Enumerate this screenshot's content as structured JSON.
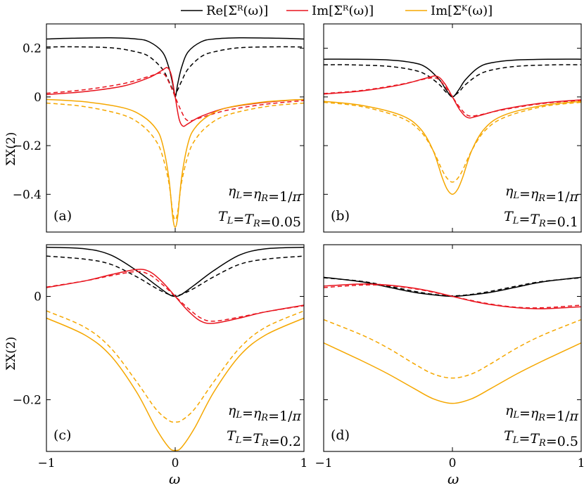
{
  "legend": [
    {
      "name": "Re[Σᴿ(ω)]",
      "color": "#000000"
    },
    {
      "name": "Im[Σᴿ(ω)]",
      "color": "#e8141e"
    },
    {
      "name": "Im[Σᴷ(ω)]",
      "color": "#f5a700"
    }
  ],
  "figure": {
    "xlabel": "ω",
    "ylabel_top": "ΣX(2)",
    "ylabel_bottom": "ΣX(2)"
  },
  "chart_data": [
    {
      "type": "line",
      "panel": "(a)",
      "annotation_eta": "ηL=ηR=1/π",
      "annotation_T": "TL=TR=0.05",
      "xlim": [
        -1,
        1
      ],
      "ylim": [
        -0.555,
        0.3
      ],
      "yticks": [
        0.2,
        0,
        -0.2,
        -0.4
      ],
      "yticklabels": [
        "0.2",
        "0",
        "−0.2",
        "−0.4"
      ],
      "xticks": [
        -1,
        0,
        1
      ],
      "xticklabels": [
        "",
        "",
        ""
      ],
      "series": [
        {
          "key": "re_solid",
          "color": "#000000",
          "dashed": false,
          "x": [
            -1,
            -0.8,
            -0.5,
            -0.3,
            -0.2,
            -0.1,
            -0.05,
            -0.02,
            0,
            0.02,
            0.05,
            0.1,
            0.2,
            0.3,
            0.5,
            0.8,
            1
          ],
          "y": [
            0.238,
            0.241,
            0.243,
            0.238,
            0.226,
            0.185,
            0.122,
            0.055,
            0.0,
            0.055,
            0.122,
            0.185,
            0.226,
            0.238,
            0.243,
            0.241,
            0.238
          ]
        },
        {
          "key": "re_dashed",
          "color": "#000000",
          "dashed": true,
          "x": [
            -1,
            -0.8,
            -0.5,
            -0.3,
            -0.2,
            -0.1,
            -0.05,
            -0.02,
            0,
            0.02,
            0.05,
            0.1,
            0.2,
            0.3,
            0.5,
            0.8,
            1
          ],
          "y": [
            0.205,
            0.206,
            0.202,
            0.185,
            0.165,
            0.115,
            0.065,
            0.03,
            0.01,
            0.03,
            0.065,
            0.115,
            0.165,
            0.185,
            0.202,
            0.206,
            0.205
          ]
        },
        {
          "key": "imr_solid",
          "color": "#e8141e",
          "dashed": false,
          "x": [
            -1,
            -0.7,
            -0.4,
            -0.2,
            -0.1,
            -0.06,
            -0.03,
            0,
            0.03,
            0.06,
            0.1,
            0.2,
            0.4,
            0.7,
            1
          ],
          "y": [
            0.01,
            0.022,
            0.045,
            0.08,
            0.11,
            0.12,
            0.09,
            0.0,
            -0.09,
            -0.12,
            -0.11,
            -0.08,
            -0.045,
            -0.022,
            -0.01
          ]
        },
        {
          "key": "imr_dashed",
          "color": "#e8141e",
          "dashed": true,
          "x": [
            -1,
            -0.7,
            -0.4,
            -0.2,
            -0.12,
            -0.08,
            -0.04,
            0,
            0.04,
            0.08,
            0.12,
            0.2,
            0.4,
            0.7,
            1
          ],
          "y": [
            0.015,
            0.03,
            0.055,
            0.085,
            0.098,
            0.09,
            0.05,
            0.0,
            -0.05,
            -0.09,
            -0.098,
            -0.085,
            -0.055,
            -0.03,
            -0.015
          ]
        },
        {
          "key": "imk_solid",
          "color": "#f5a700",
          "dashed": false,
          "x": [
            -1,
            -0.7,
            -0.4,
            -0.25,
            -0.15,
            -0.1,
            -0.05,
            -0.02,
            0,
            0.02,
            0.05,
            0.1,
            0.15,
            0.25,
            0.4,
            0.7,
            1
          ],
          "y": [
            -0.01,
            -0.02,
            -0.045,
            -0.08,
            -0.13,
            -0.19,
            -0.33,
            -0.49,
            -0.535,
            -0.49,
            -0.33,
            -0.19,
            -0.13,
            -0.08,
            -0.045,
            -0.02,
            -0.01
          ]
        },
        {
          "key": "imk_dashed",
          "color": "#f5a700",
          "dashed": true,
          "x": [
            -1,
            -0.7,
            -0.4,
            -0.25,
            -0.15,
            -0.1,
            -0.05,
            -0.02,
            0,
            0.02,
            0.05,
            0.1,
            0.15,
            0.25,
            0.4,
            0.7,
            1
          ],
          "y": [
            -0.025,
            -0.04,
            -0.075,
            -0.12,
            -0.18,
            -0.24,
            -0.35,
            -0.47,
            -0.505,
            -0.47,
            -0.35,
            -0.24,
            -0.18,
            -0.12,
            -0.075,
            -0.04,
            -0.025
          ]
        }
      ]
    },
    {
      "type": "line",
      "panel": "(b)",
      "annotation_eta": "ηL=ηR=1/π",
      "annotation_T": "TL=TR=0.1",
      "xlim": [
        -1,
        1
      ],
      "ylim": [
        -0.555,
        0.3
      ],
      "yticks": [
        0.2,
        0,
        -0.2,
        -0.4
      ],
      "yticklabels": [
        "",
        "",
        "",
        ""
      ],
      "xticks": [
        -1,
        0,
        1
      ],
      "xticklabels": [
        "",
        "",
        ""
      ],
      "series": [
        {
          "key": "re_solid",
          "color": "#000000",
          "dashed": false,
          "x": [
            -1,
            -0.8,
            -0.5,
            -0.3,
            -0.2,
            -0.1,
            -0.05,
            0,
            0.05,
            0.1,
            0.2,
            0.3,
            0.5,
            0.8,
            1
          ],
          "y": [
            0.155,
            0.155,
            0.152,
            0.14,
            0.12,
            0.07,
            0.03,
            0.0,
            0.03,
            0.07,
            0.12,
            0.14,
            0.152,
            0.155,
            0.155
          ]
        },
        {
          "key": "re_dashed",
          "color": "#000000",
          "dashed": true,
          "x": [
            -1,
            -0.8,
            -0.5,
            -0.3,
            -0.2,
            -0.1,
            -0.05,
            0,
            0.05,
            0.1,
            0.2,
            0.3,
            0.5,
            0.8,
            1
          ],
          "y": [
            0.132,
            0.132,
            0.126,
            0.11,
            0.09,
            0.05,
            0.02,
            0.005,
            0.02,
            0.05,
            0.09,
            0.11,
            0.126,
            0.132,
            0.132
          ]
        },
        {
          "key": "imr_solid",
          "color": "#e8141e",
          "dashed": false,
          "x": [
            -1,
            -0.7,
            -0.4,
            -0.2,
            -0.12,
            -0.06,
            0,
            0.06,
            0.12,
            0.2,
            0.4,
            0.7,
            1
          ],
          "y": [
            0.012,
            0.025,
            0.05,
            0.078,
            0.085,
            0.055,
            0.0,
            -0.055,
            -0.085,
            -0.078,
            -0.05,
            -0.025,
            -0.012
          ]
        },
        {
          "key": "imr_dashed",
          "color": "#e8141e",
          "dashed": true,
          "x": [
            -1,
            -0.7,
            -0.4,
            -0.2,
            -0.12,
            -0.06,
            0,
            0.06,
            0.12,
            0.2,
            0.4,
            0.7,
            1
          ],
          "y": [
            0.014,
            0.027,
            0.052,
            0.075,
            0.076,
            0.045,
            0.0,
            -0.045,
            -0.076,
            -0.075,
            -0.052,
            -0.027,
            -0.014
          ]
        },
        {
          "key": "imk_solid",
          "color": "#f5a700",
          "dashed": false,
          "x": [
            -1,
            -0.7,
            -0.4,
            -0.25,
            -0.15,
            -0.08,
            -0.04,
            0,
            0.04,
            0.08,
            0.15,
            0.25,
            0.4,
            0.7,
            1
          ],
          "y": [
            -0.018,
            -0.035,
            -0.075,
            -0.13,
            -0.22,
            -0.33,
            -0.38,
            -0.4,
            -0.38,
            -0.33,
            -0.22,
            -0.13,
            -0.075,
            -0.035,
            -0.018
          ]
        },
        {
          "key": "imk_dashed",
          "color": "#f5a700",
          "dashed": true,
          "x": [
            -1,
            -0.7,
            -0.4,
            -0.25,
            -0.15,
            -0.08,
            -0.04,
            0,
            0.04,
            0.08,
            0.15,
            0.25,
            0.4,
            0.7,
            1
          ],
          "y": [
            -0.022,
            -0.04,
            -0.085,
            -0.14,
            -0.22,
            -0.3,
            -0.335,
            -0.35,
            -0.335,
            -0.3,
            -0.22,
            -0.14,
            -0.085,
            -0.04,
            -0.022
          ]
        }
      ]
    },
    {
      "type": "line",
      "panel": "(c)",
      "annotation_eta": "ηL=ηR=1/π",
      "annotation_T": "TL=TR=0.2",
      "xlim": [
        -1,
        1
      ],
      "ylim": [
        -0.3,
        0.1
      ],
      "yticks": [
        0,
        -0.2
      ],
      "yticklabels": [
        "0",
        "−0.2"
      ],
      "xticks": [
        -1,
        0,
        1
      ],
      "xticklabels": [
        "−1",
        "0",
        "1"
      ],
      "series": [
        {
          "key": "re_solid",
          "color": "#000000",
          "dashed": false,
          "x": [
            -1,
            -0.7,
            -0.5,
            -0.3,
            -0.15,
            -0.05,
            0,
            0.05,
            0.15,
            0.3,
            0.5,
            0.7,
            1
          ],
          "y": [
            0.095,
            0.092,
            0.08,
            0.05,
            0.022,
            0.004,
            0.0,
            0.004,
            0.022,
            0.05,
            0.08,
            0.092,
            0.095
          ]
        },
        {
          "key": "re_dashed",
          "color": "#000000",
          "dashed": true,
          "x": [
            -1,
            -0.7,
            -0.5,
            -0.3,
            -0.15,
            -0.05,
            0,
            0.05,
            0.15,
            0.3,
            0.5,
            0.7,
            1
          ],
          "y": [
            0.078,
            0.072,
            0.062,
            0.038,
            0.016,
            0.004,
            0.002,
            0.004,
            0.016,
            0.038,
            0.062,
            0.072,
            0.078
          ]
        },
        {
          "key": "imr_solid",
          "color": "#e8141e",
          "dashed": false,
          "x": [
            -1,
            -0.7,
            -0.5,
            -0.3,
            -0.2,
            -0.1,
            0,
            0.1,
            0.2,
            0.3,
            0.5,
            0.7,
            1
          ],
          "y": [
            0.017,
            0.03,
            0.042,
            0.052,
            0.048,
            0.028,
            0.0,
            -0.028,
            -0.048,
            -0.052,
            -0.042,
            -0.03,
            -0.017
          ]
        },
        {
          "key": "imr_dashed",
          "color": "#e8141e",
          "dashed": true,
          "x": [
            -1,
            -0.7,
            -0.5,
            -0.3,
            -0.2,
            -0.1,
            0,
            0.1,
            0.2,
            0.3,
            0.5,
            0.7,
            1
          ],
          "y": [
            0.018,
            0.03,
            0.04,
            0.048,
            0.042,
            0.023,
            0.0,
            -0.023,
            -0.042,
            -0.048,
            -0.04,
            -0.03,
            -0.018
          ]
        },
        {
          "key": "imk_solid",
          "color": "#f5a700",
          "dashed": false,
          "x": [
            -1,
            -0.7,
            -0.5,
            -0.3,
            -0.15,
            -0.05,
            0,
            0.05,
            0.15,
            0.3,
            0.5,
            0.7,
            1
          ],
          "y": [
            -0.042,
            -0.075,
            -0.115,
            -0.185,
            -0.255,
            -0.292,
            -0.298,
            -0.292,
            -0.255,
            -0.185,
            -0.115,
            -0.075,
            -0.042
          ]
        },
        {
          "key": "imk_dashed",
          "color": "#f5a700",
          "dashed": true,
          "x": [
            -1,
            -0.7,
            -0.5,
            -0.3,
            -0.15,
            -0.05,
            0,
            0.05,
            0.15,
            0.3,
            0.5,
            0.7,
            1
          ],
          "y": [
            -0.028,
            -0.06,
            -0.1,
            -0.165,
            -0.218,
            -0.24,
            -0.243,
            -0.24,
            -0.218,
            -0.165,
            -0.1,
            -0.06,
            -0.028
          ]
        }
      ]
    },
    {
      "type": "line",
      "panel": "(d)",
      "annotation_eta": "ηL=ηR=1/π",
      "annotation_T": "TL=TR=0.5",
      "xlim": [
        -1,
        1
      ],
      "ylim": [
        -0.3,
        0.1
      ],
      "yticks": [
        0,
        -0.2
      ],
      "yticklabels": [
        "",
        ""
      ],
      "xticks": [
        -1,
        0,
        1
      ],
      "xticklabels": [
        "−1",
        "0",
        "1"
      ],
      "series": [
        {
          "key": "re_solid",
          "color": "#000000",
          "dashed": false,
          "x": [
            -1,
            -0.7,
            -0.5,
            -0.3,
            -0.15,
            0,
            0.15,
            0.3,
            0.5,
            0.7,
            1
          ],
          "y": [
            0.037,
            0.028,
            0.018,
            0.008,
            0.003,
            0.0,
            0.003,
            0.008,
            0.018,
            0.028,
            0.037
          ]
        },
        {
          "key": "re_dashed",
          "color": "#000000",
          "dashed": true,
          "x": [
            -1,
            -0.7,
            -0.5,
            -0.3,
            -0.15,
            0,
            0.15,
            0.3,
            0.5,
            0.7,
            1
          ],
          "y": [
            0.036,
            0.029,
            0.02,
            0.01,
            0.004,
            0.001,
            0.004,
            0.01,
            0.02,
            0.029,
            0.036
          ]
        },
        {
          "key": "imr_solid",
          "color": "#e8141e",
          "dashed": false,
          "x": [
            -1,
            -0.7,
            -0.5,
            -0.3,
            -0.15,
            0,
            0.15,
            0.3,
            0.5,
            0.7,
            1
          ],
          "y": [
            0.02,
            0.024,
            0.022,
            0.016,
            0.009,
            0.0,
            -0.009,
            -0.016,
            -0.022,
            -0.024,
            -0.02
          ]
        },
        {
          "key": "imr_dashed",
          "color": "#e8141e",
          "dashed": true,
          "x": [
            -1,
            -0.7,
            -0.5,
            -0.3,
            -0.15,
            0,
            0.15,
            0.3,
            0.5,
            0.7,
            1
          ],
          "y": [
            0.017,
            0.022,
            0.021,
            0.015,
            0.008,
            0.0,
            -0.008,
            -0.015,
            -0.021,
            -0.022,
            -0.017
          ]
        },
        {
          "key": "imk_solid",
          "color": "#f5a700",
          "dashed": false,
          "x": [
            -1,
            -0.7,
            -0.5,
            -0.3,
            -0.15,
            0,
            0.15,
            0.3,
            0.5,
            0.7,
            1
          ],
          "y": [
            -0.09,
            -0.125,
            -0.15,
            -0.178,
            -0.198,
            -0.207,
            -0.198,
            -0.178,
            -0.15,
            -0.125,
            -0.09
          ]
        },
        {
          "key": "imk_dashed",
          "color": "#f5a700",
          "dashed": true,
          "x": [
            -1,
            -0.7,
            -0.5,
            -0.3,
            -0.15,
            0,
            0.15,
            0.3,
            0.5,
            0.7,
            1
          ],
          "y": [
            -0.045,
            -0.075,
            -0.1,
            -0.13,
            -0.15,
            -0.158,
            -0.15,
            -0.13,
            -0.1,
            -0.075,
            -0.045
          ]
        }
      ]
    }
  ]
}
